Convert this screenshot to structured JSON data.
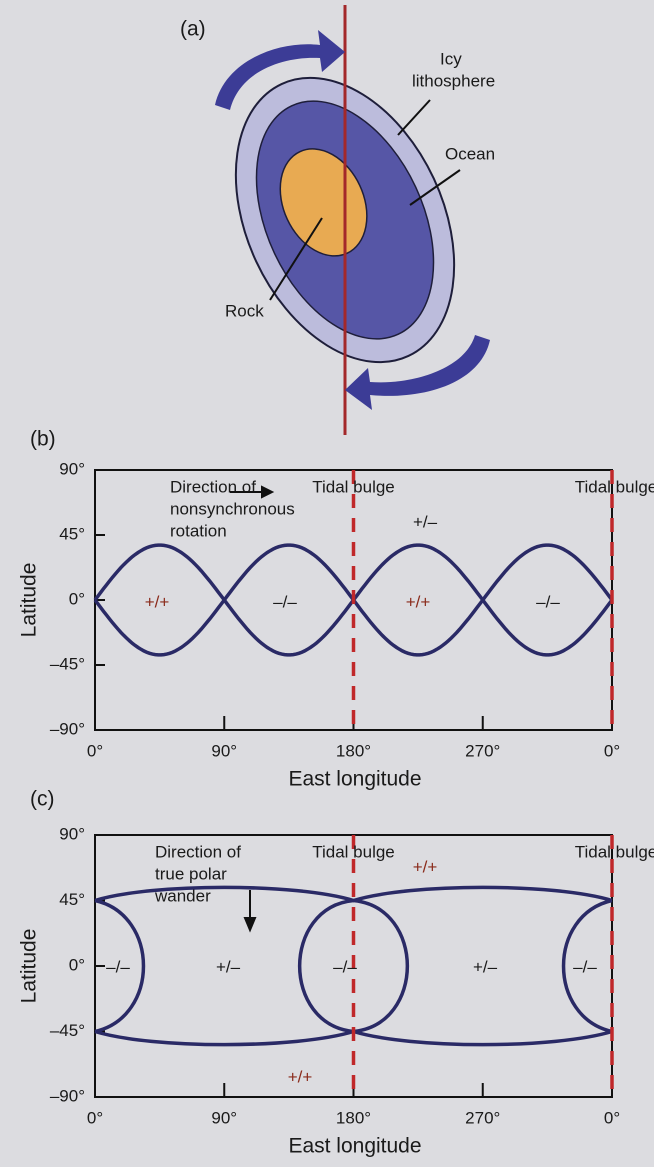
{
  "panel_a": {
    "label": "(a)",
    "icy": [
      "Icy",
      "lithosphere"
    ],
    "ocean": "Ocean",
    "rock": "Rock"
  },
  "panel_b": {
    "label": "(b)",
    "y_axis_label": "Latitude",
    "x_axis_label": "East longitude",
    "yticks": [
      "90°",
      "45°",
      "0°",
      "–45°",
      "–90°"
    ],
    "xticks": [
      "0°",
      "90°",
      "180°",
      "270°",
      "0°"
    ],
    "direction_label": [
      "Direction of",
      "nonsynchronous",
      "rotation"
    ],
    "bulge_labels": [
      "Tidal bulge",
      "Tidal bulge"
    ],
    "region_labels": [
      "+/–",
      "+/+",
      "–/–",
      "+/+",
      "–/–"
    ]
  },
  "panel_c": {
    "label": "(c)",
    "y_axis_label": "Latitude",
    "x_axis_label": "East longitude",
    "yticks": [
      "90°",
      "45°",
      "0°",
      "–45°",
      "–90°"
    ],
    "xticks": [
      "0°",
      "90°",
      "180°",
      "270°",
      "0°"
    ],
    "direction_label": [
      "Direction of",
      "true polar",
      "wander"
    ],
    "bulge_labels": [
      "Tidal bulge",
      "Tidal bulge"
    ],
    "region_labels": [
      "+/+",
      "–/–",
      "+/–",
      "–/–",
      "+/–",
      "–/–",
      "+/+"
    ]
  }
}
